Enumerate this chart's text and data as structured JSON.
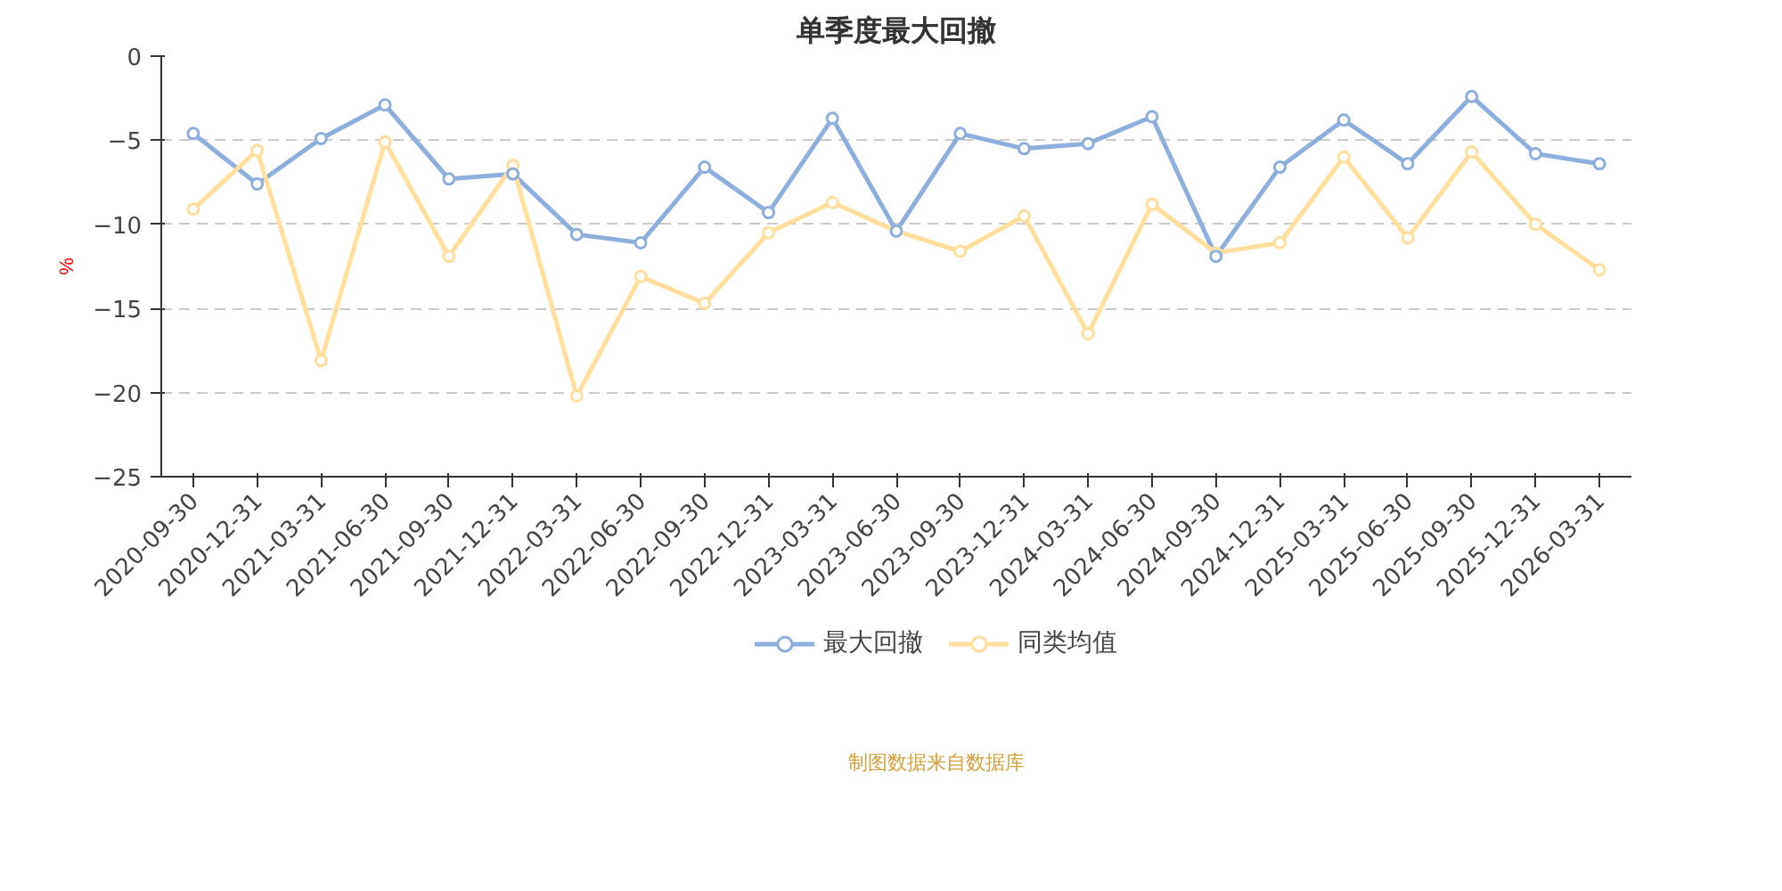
{
  "chart_data": {
    "type": "line",
    "title": "单季度最大回撤",
    "ylabel": "%",
    "categories": [
      "2020-09-30",
      "2020-12-31",
      "2021-03-31",
      "2021-06-30",
      "2021-09-30",
      "2021-12-31",
      "2022-03-31",
      "2022-06-30",
      "2022-09-30",
      "2022-12-31",
      "2023-03-31",
      "2023-06-30",
      "2023-09-30",
      "2023-12-31",
      "2024-03-31",
      "2024-06-30",
      "2024-09-30",
      "2024-12-31",
      "2025-03-31",
      "2025-06-30",
      "2025-09-30",
      "2025-12-31",
      "2026-03-31"
    ],
    "series": [
      {
        "name": "最大回撤",
        "color": "#8eaedc",
        "values": [
          -4.6,
          -7.6,
          -4.9,
          -2.9,
          -7.3,
          -7.0,
          -10.6,
          -11.1,
          -6.6,
          -9.3,
          -3.7,
          -10.4,
          -4.6,
          -5.5,
          -5.2,
          -3.6,
          -11.9,
          -6.6,
          -3.8,
          -6.4,
          -2.4,
          -5.8,
          -6.4
        ]
      },
      {
        "name": "同类均值",
        "color": "#ffdf9e",
        "values": [
          -9.1,
          -5.6,
          -18.1,
          -5.1,
          -11.9,
          -6.5,
          -20.2,
          -13.1,
          -14.7,
          -10.5,
          -8.7,
          -10.4,
          -11.6,
          -9.5,
          -16.5,
          -8.8,
          -11.7,
          -11.1,
          -6.0,
          -10.8,
          -5.7,
          -10.0,
          -12.7
        ]
      }
    ],
    "ylim": [
      -25,
      0
    ],
    "yticks": [
      -25,
      -20,
      -15,
      -10,
      -5,
      0
    ],
    "grid": "y",
    "legend": "bottom",
    "marker": "circle",
    "line_style": "solid",
    "annotations": [
      "制图数据来自数据库"
    ]
  }
}
